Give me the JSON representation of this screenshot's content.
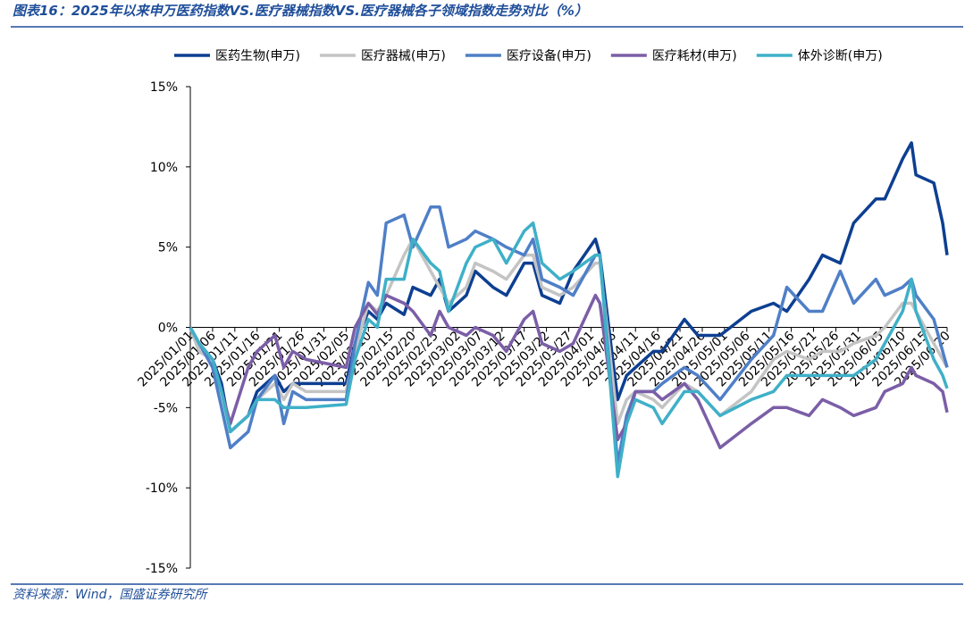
{
  "chart_data": {
    "type": "line",
    "title": "图表16：2025年以来申万医药指数VS.医疗器械指数VS.医疗器械各子领域指数走势对比（%）",
    "source": "资料来源：Wind，国盛证券研究所",
    "x": [
      "2025/01/01",
      "2025/01/03",
      "2025/01/06",
      "2025/01/08",
      "2025/01/10",
      "2025/01/14",
      "2025/01/16",
      "2025/01/20",
      "2025/01/22",
      "2025/01/24",
      "2025/01/27",
      "2025/02/05",
      "2025/02/07",
      "2025/02/10",
      "2025/02/12",
      "2025/02/14",
      "2025/02/18",
      "2025/02/20",
      "2025/02/24",
      "2025/02/26",
      "2025/02/28",
      "2025/03/04",
      "2025/03/06",
      "2025/03/10",
      "2025/03/13",
      "2025/03/17",
      "2025/03/19",
      "2025/03/21",
      "2025/03/25",
      "2025/03/28",
      "2025/04/02",
      "2025/04/03",
      "2025/04/07",
      "2025/04/09",
      "2025/04/11",
      "2025/04/15",
      "2025/04/17",
      "2025/04/22",
      "2025/04/25",
      "2025/04/30",
      "2025/05/07",
      "2025/05/12",
      "2025/05/15",
      "2025/05/20",
      "2025/05/23",
      "2025/05/27",
      "2025/05/30",
      "2025/06/04",
      "2025/06/06",
      "2025/06/10",
      "2025/06/12",
      "2025/06/13",
      "2025/06/17",
      "2025/06/19",
      "2025/06/20"
    ],
    "series": [
      {
        "name": "医药生物(申万)",
        "color": "#0d3f91",
        "values": [
          0,
          -1.5,
          -2,
          -3.5,
          -6.5,
          -5.5,
          -4,
          -3,
          -4,
          -3.5,
          -3.5,
          -3.5,
          -1,
          1,
          0.5,
          1.5,
          0.8,
          2.5,
          2,
          3,
          1,
          2,
          3.5,
          2.5,
          2,
          4,
          4,
          2,
          1.5,
          3.5,
          5.5,
          4.5,
          -4.5,
          -3,
          -2.5,
          -1.5,
          -1.5,
          0.5,
          -0.5,
          -0.5,
          1,
          1.5,
          1,
          3,
          4.5,
          4,
          6.5,
          8,
          8,
          10.5,
          11.5,
          9.5,
          9,
          6.5,
          4.5
        ]
      },
      {
        "name": "医疗器械(申万)",
        "color": "#c4c4c4",
        "values": [
          0,
          -1.5,
          -2,
          -4,
          -6.5,
          -5.5,
          -4.5,
          -3.5,
          -4.5,
          -3.5,
          -4,
          -4,
          -1.5,
          1.5,
          1,
          2,
          4.5,
          5.5,
          3.5,
          2.5,
          1.5,
          2.5,
          4,
          3.5,
          3,
          4.5,
          4.5,
          2.5,
          2,
          2.5,
          4,
          4,
          -6,
          -4.5,
          -4,
          -4.5,
          -5,
          -3.5,
          -4,
          -5.5,
          -4,
          -2,
          -1.5,
          -2,
          -1.5,
          -1.5,
          -1,
          -0.5,
          0,
          1.5,
          1.5,
          1,
          -1,
          -2,
          -2.5
        ]
      },
      {
        "name": "医疗设备(申万)",
        "color": "#4f7fc7",
        "values": [
          0,
          -1,
          -2.5,
          -5,
          -7.5,
          -6.5,
          -4.5,
          -3,
          -6,
          -4,
          -4.5,
          -4.5,
          -1,
          2.8,
          2,
          6.5,
          7,
          5,
          7.5,
          7.5,
          5,
          5.5,
          6,
          5.5,
          5,
          4.5,
          5.5,
          3,
          2.5,
          2,
          4.5,
          4.5,
          -8.5,
          -5.5,
          -4,
          -4,
          -3.5,
          -2.5,
          -3,
          -4.5,
          -2,
          -0.5,
          2.5,
          1,
          1,
          3.5,
          1.5,
          3,
          2,
          2.5,
          3,
          2,
          0.5,
          -1.5,
          -2.5
        ]
      },
      {
        "name": "医疗耗材(申万)",
        "color": "#7b5ea7",
        "values": [
          0,
          -1,
          -2,
          -4,
          -6,
          -2.5,
          -1.5,
          -0.5,
          -2.5,
          -1.5,
          -2,
          -2.5,
          0,
          1.5,
          0.8,
          2,
          1.5,
          1,
          -0.5,
          1,
          0,
          -0.5,
          0,
          -0.5,
          -1.5,
          0.5,
          1,
          -1,
          -1.5,
          -1,
          2,
          1.5,
          -7,
          -6,
          -4,
          -4,
          -4.5,
          -3.5,
          -4.5,
          -7.5,
          -6,
          -5,
          -5,
          -5.5,
          -4.5,
          -5,
          -5.5,
          -5,
          -4,
          -3.5,
          -2.5,
          -3,
          -3.5,
          -4,
          -5.3
        ]
      },
      {
        "name": "体外诊断(申万)",
        "color": "#3fb0c8",
        "values": [
          0,
          -1,
          -2,
          -4,
          -6.5,
          -5.5,
          -4.5,
          -4.5,
          -5,
          -5,
          -5,
          -4.8,
          -2,
          0.5,
          0,
          3,
          3,
          5.5,
          4,
          3.5,
          1,
          4,
          5,
          5.5,
          4,
          6,
          6.5,
          4,
          3,
          3.5,
          4.5,
          4.5,
          -9.3,
          -6,
          -4.5,
          -5,
          -6,
          -4,
          -4,
          -5.5,
          -4.5,
          -4,
          -3,
          -3,
          -3,
          -3,
          -3,
          -2,
          -1,
          1,
          3,
          1,
          -2,
          -3,
          -3.8
        ]
      }
    ],
    "xlim": [
      "2025/01/01",
      "2025/06/20"
    ],
    "xticks": [
      "2025/01/01",
      "2025/01/06",
      "2025/01/11",
      "2025/01/16",
      "2025/01/21",
      "2025/01/26",
      "2025/01/31",
      "2025/02/05",
      "2025/02/10",
      "2025/02/15",
      "2025/02/20",
      "2025/02/25",
      "2025/03/02",
      "2025/03/07",
      "2025/03/12",
      "2025/03/17",
      "2025/03/22",
      "2025/03/27",
      "2025/04/01",
      "2025/04/06",
      "2025/04/11",
      "2025/04/16",
      "2025/04/21",
      "2025/04/26",
      "2025/05/01",
      "2025/05/06",
      "2025/05/11",
      "2025/05/16",
      "2025/05/21",
      "2025/05/26",
      "2025/05/31",
      "2025/06/05",
      "2025/06/10",
      "2025/06/15",
      "2025/06/20"
    ],
    "ylim": [
      -15,
      15
    ],
    "yticks": [
      {
        "value": -15,
        "label": "-15%"
      },
      {
        "value": -10,
        "label": "-10%"
      },
      {
        "value": -5,
        "label": "-5%"
      },
      {
        "value": 0,
        "label": "0%"
      },
      {
        "value": 5,
        "label": "5%"
      },
      {
        "value": 10,
        "label": "10%"
      },
      {
        "value": 15,
        "label": "15%"
      }
    ],
    "legend": "top"
  }
}
